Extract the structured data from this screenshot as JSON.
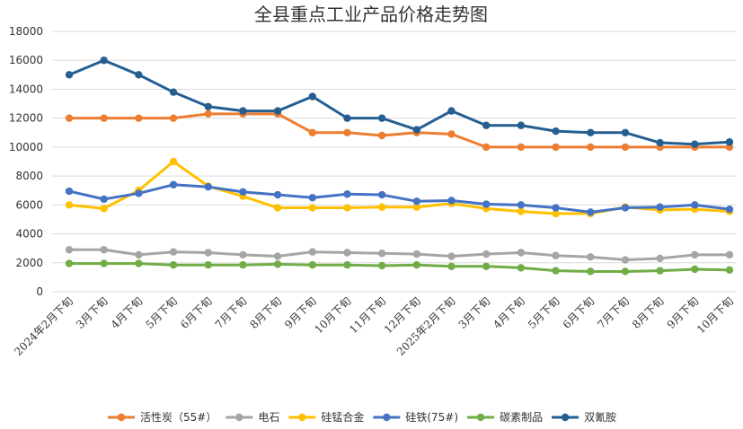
{
  "chart_data": {
    "type": "line",
    "title": "全县重点工业产品价格走势图",
    "categories": [
      "2024年2月下旬",
      "3月下旬",
      "4月下旬",
      "5月下旬",
      "6月下旬",
      "7月下旬",
      "8月下旬",
      "9月下旬",
      "10月下旬",
      "11月下旬",
      "12月下旬",
      "2025年2月下旬",
      "3月下旬",
      "4月下旬",
      "5月下旬",
      "6月下旬",
      "7月下旬",
      "8月下旬",
      "9月下旬",
      "10月下旬"
    ],
    "ylim": [
      0,
      18000
    ],
    "yticks": [
      0,
      2000,
      4000,
      6000,
      8000,
      10000,
      12000,
      14000,
      16000,
      18000
    ],
    "grid": true,
    "legend_position": "bottom",
    "series": [
      {
        "name": "活性炭（55#）",
        "color": "#ED7D31",
        "values": [
          12000,
          12000,
          12000,
          12000,
          12300,
          12300,
          12300,
          11000,
          11000,
          10800,
          11000,
          10900,
          10000,
          10000,
          10000,
          10000,
          10000,
          10000,
          10000,
          10000
        ]
      },
      {
        "name": "电石",
        "color": "#A5A5A5",
        "values": [
          2900,
          2900,
          2550,
          2750,
          2700,
          2550,
          2450,
          2750,
          2700,
          2650,
          2600,
          2450,
          2600,
          2700,
          2500,
          2400,
          2200,
          2300,
          2550,
          2550
        ]
      },
      {
        "name": "硅锰合金",
        "color": "#FFC000",
        "values": [
          6000,
          5750,
          7000,
          9000,
          7300,
          6600,
          5800,
          5800,
          5800,
          5850,
          5850,
          6100,
          5750,
          5550,
          5400,
          5400,
          5850,
          5650,
          5700,
          5550
        ]
      },
      {
        "name": "硅铁(75#)",
        "color": "#4472C4",
        "values": [
          6950,
          6400,
          6800,
          7400,
          7250,
          6900,
          6700,
          6500,
          6750,
          6700,
          6250,
          6300,
          6050,
          6000,
          5800,
          5500,
          5800,
          5850,
          6000,
          5700
        ]
      },
      {
        "name": "碳素制品",
        "color": "#70AD47",
        "values": [
          1950,
          1950,
          1950,
          1850,
          1850,
          1850,
          1900,
          1850,
          1850,
          1800,
          1850,
          1750,
          1750,
          1650,
          1450,
          1400,
          1400,
          1450,
          1550,
          1500
        ]
      },
      {
        "name": "双氰胺",
        "color": "#255E91",
        "values": [
          15000,
          16000,
          15000,
          13800,
          12800,
          12500,
          12500,
          13500,
          12000,
          12000,
          11200,
          12500,
          11500,
          11500,
          11100,
          11000,
          11000,
          10300,
          10200,
          10350
        ]
      }
    ]
  }
}
